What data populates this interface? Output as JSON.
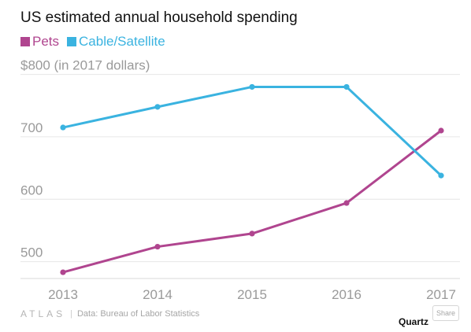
{
  "chart_data": {
    "type": "line",
    "title": "US estimated annual household spending",
    "x": [
      2013,
      2014,
      2015,
      2016,
      2017
    ],
    "x_tick_labels": [
      "2013",
      "2014",
      "2015",
      "2016",
      "2017"
    ],
    "ylim": [
      480,
      805
    ],
    "y_ticks": [
      500,
      600,
      700,
      800
    ],
    "y_tick_labels": [
      "500",
      "600",
      "700",
      "$800 (in 2017 dollars)"
    ],
    "grid": true,
    "legend_position": "top-left",
    "series": [
      {
        "name": "Pets",
        "color": "#b0458f",
        "values": [
          483,
          524,
          545,
          594,
          710
        ]
      },
      {
        "name": "Cable/Satellite",
        "color": "#3ab3e0",
        "values": [
          715,
          748,
          780,
          780,
          638
        ]
      }
    ]
  },
  "footer": {
    "brand_mark": "ATLAS",
    "separator": "|",
    "source": "Data:  Bureau of Labor Statistics",
    "publisher": "Quartz",
    "share_label": "Share"
  }
}
